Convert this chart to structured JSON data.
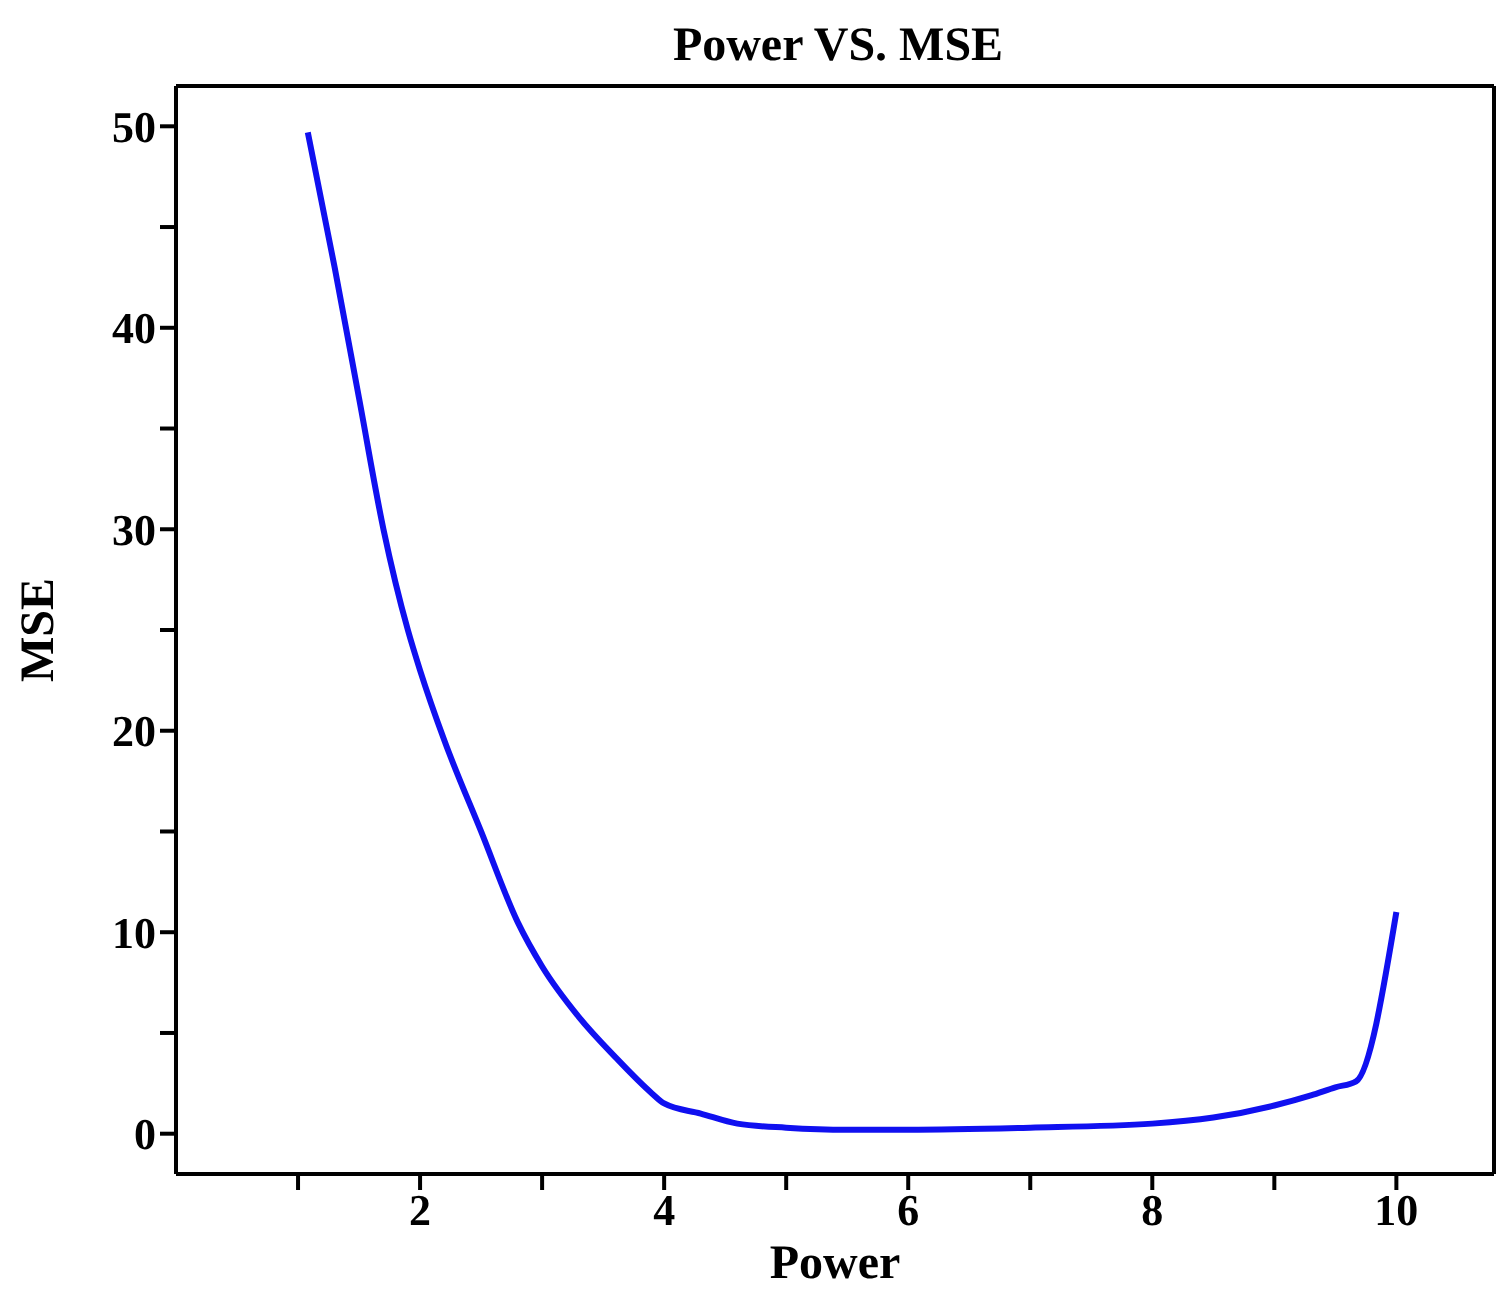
{
  "chart_data": {
    "type": "line",
    "title": "Power VS. MSE",
    "xlabel": "Power",
    "ylabel": "MSE",
    "series": [
      {
        "color": "#1010f0",
        "x": [
          1.08,
          1.3,
          1.5,
          1.7,
          1.9,
          2.0,
          2.2,
          2.5,
          2.8,
          3.0,
          3.3,
          3.6,
          3.9,
          4.0,
          4.3,
          4.6,
          5.0,
          5.5,
          6.0,
          7.0,
          8.0,
          8.5,
          9.0,
          9.3,
          9.5,
          9.67,
          10.0
        ],
        "values": [
          49.7,
          43,
          36.5,
          30,
          25,
          23,
          19.5,
          15,
          10.5,
          8.3,
          5.8,
          3.8,
          2,
          1.5,
          1,
          0.5,
          0.3,
          0.2,
          0.2,
          0.3,
          0.5,
          0.8,
          1.4,
          1.9,
          2.3,
          2.6,
          11
        ]
      }
    ],
    "xlim": [
      0,
      10.8
    ],
    "ylim": [
      -2,
      52
    ],
    "xticks": [
      {
        "value": 1,
        "label": null
      },
      2,
      {
        "value": 3,
        "label": null
      },
      4,
      {
        "value": 5,
        "label": null
      },
      6,
      {
        "value": 7,
        "label": null
      },
      8,
      {
        "value": 9,
        "label": null
      },
      10
    ],
    "yticks": [
      0,
      {
        "value": 5,
        "label": null
      },
      10,
      {
        "value": 15,
        "label": null
      },
      20,
      {
        "value": 25,
        "label": null
      },
      30,
      {
        "value": 35,
        "label": null
      },
      40,
      {
        "value": 45,
        "label": null
      },
      50
    ],
    "legend": false,
    "marker": "none",
    "line_style": "solid"
  }
}
